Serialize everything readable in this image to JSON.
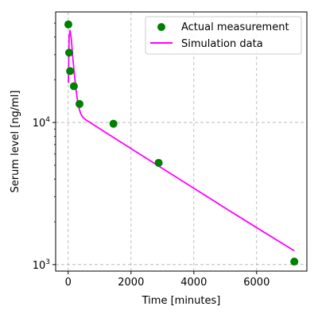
{
  "chart_data": {
    "type": "scatter",
    "title": "",
    "xlabel": "Time [minutes]",
    "ylabel": "Serum level [ng/ml]",
    "xlim": [
      -400,
      7600
    ],
    "ylim": [
      900,
      60000
    ],
    "yscale": "log",
    "grid": true,
    "legend_position": "top-right",
    "x_ticks": [
      {
        "value": 0,
        "label": "0"
      },
      {
        "value": 2000,
        "label": "2000"
      },
      {
        "value": 4000,
        "label": "4000"
      },
      {
        "value": 6000,
        "label": "6000"
      }
    ],
    "y_ticks": [
      {
        "value": 1000,
        "base": "10",
        "exp": "3"
      },
      {
        "value": 10000,
        "base": "10",
        "exp": "4"
      }
    ],
    "series": [
      {
        "name": "Actual measurement",
        "kind": "scatter",
        "color": "#008000",
        "x": [
          5,
          30,
          60,
          180,
          360,
          1440,
          2880,
          7200
        ],
        "y": [
          49000,
          31000,
          23000,
          18000,
          13500,
          9800,
          5200,
          1050
        ]
      },
      {
        "name": "Simulation data",
        "kind": "line",
        "color": "#ff00ff",
        "x": [
          5,
          30,
          60,
          100,
          150,
          200,
          250,
          300,
          350,
          400,
          450,
          500,
          600,
          700,
          800,
          1000,
          1500,
          2000,
          3000,
          4000,
          5000,
          6000,
          7200
        ],
        "y": [
          19000,
          41000,
          44500,
          38000,
          28000,
          21500,
          17000,
          14000,
          12500,
          11500,
          11000,
          10700,
          10300,
          10000,
          9650,
          9050,
          7700,
          6550,
          4750,
          3450,
          2500,
          1820,
          1250
        ]
      }
    ]
  }
}
